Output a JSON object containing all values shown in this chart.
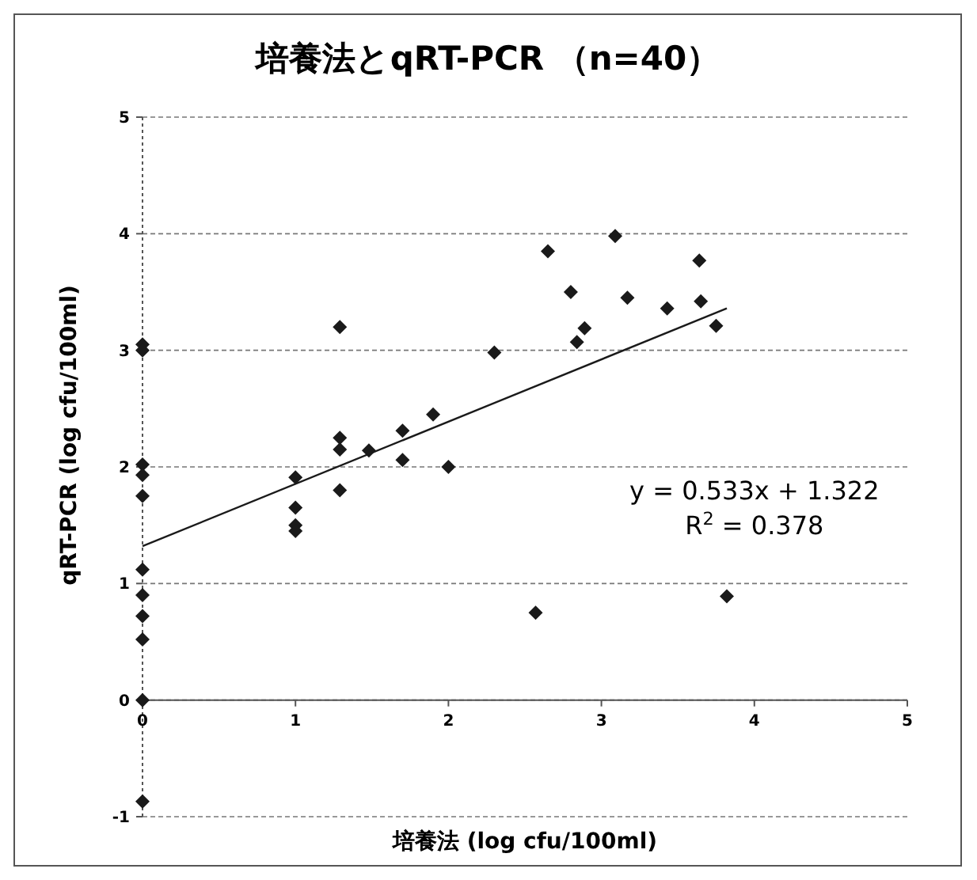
{
  "chart_data": {
    "type": "scatter",
    "title": "培養法とqRT-PCR （n=40）",
    "xlabel": "培養法 (log cfu/100ml)",
    "ylabel": "qRT-PCR (log cfu/100ml)",
    "xlim": [
      0,
      5
    ],
    "xticks": [
      0,
      1,
      2,
      3,
      4,
      5
    ],
    "ylim": [
      -1,
      5
    ],
    "yticks": [
      -1,
      0,
      1,
      2,
      3,
      4,
      5
    ],
    "grid": "y",
    "marker": "diamond",
    "annotations": [
      "y = 0.533x + 1.322",
      "R$^{2}$ = 0.378"
    ],
    "series": [
      {
        "color": "#1a1a1a",
        "x": [
          0,
          0,
          0,
          0,
          0,
          0,
          0,
          0,
          0,
          0,
          0,
          1,
          1,
          1,
          1,
          1.29,
          1.29,
          1.29,
          1.29,
          1.48,
          1.7,
          1.7,
          1.9,
          2.0,
          2.3,
          2.57,
          2.65,
          2.8,
          2.84,
          2.89,
          3.09,
          3.17,
          3.43,
          3.64,
          3.65,
          3.75,
          3.82
        ],
        "values": [
          3.05,
          3.0,
          2.02,
          1.93,
          1.75,
          1.12,
          0.9,
          0.72,
          0.52,
          0,
          -0.87,
          1.91,
          1.65,
          1.5,
          1.45,
          3.2,
          2.25,
          2.15,
          1.8,
          2.14,
          2.31,
          2.06,
          2.45,
          2.0,
          2.98,
          0.75,
          3.85,
          3.5,
          3.07,
          3.19,
          3.98,
          3.45,
          3.36,
          3.77,
          3.42,
          3.21,
          0.89
        ]
      },
      {
        "type": "line",
        "color": "#1a1a1a",
        "marker": "none",
        "x": [
          0,
          3.82
        ],
        "values": [
          1.32,
          3.36
        ]
      }
    ]
  }
}
